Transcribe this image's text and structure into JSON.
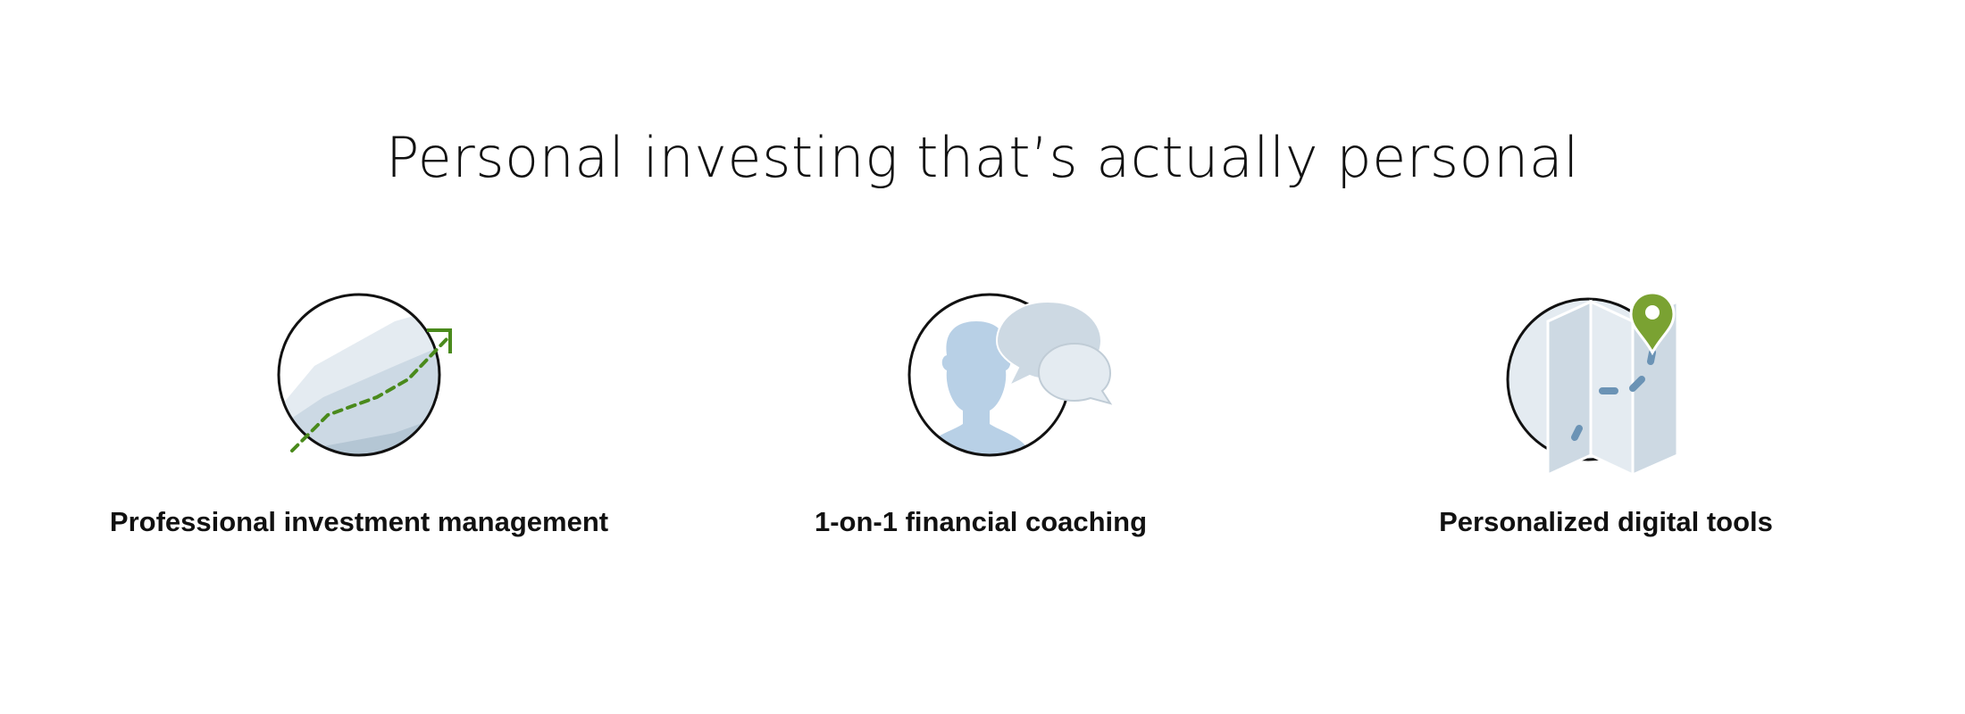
{
  "headline": "Personal investing that’s actually personal",
  "features": [
    {
      "label": "Professional investment management",
      "icon": "growth-chart-icon"
    },
    {
      "label": "1-on-1 financial coaching",
      "icon": "coaching-chat-icon"
    },
    {
      "label": "Personalized digital tools",
      "icon": "map-pin-icon"
    }
  ],
  "colors": {
    "accent_green": "#4a8a1c",
    "light_blue": "#b8d0e6",
    "pale_gray_blue": "#dde5ec",
    "dot_blue": "#6b93b5"
  }
}
